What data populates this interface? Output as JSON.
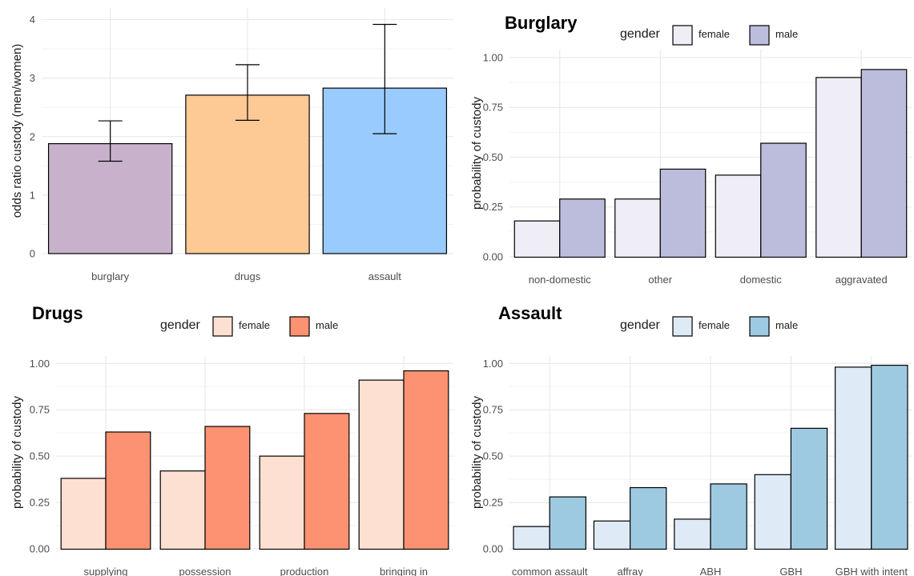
{
  "chart_data": [
    {
      "type": "bar",
      "title": "",
      "xlabel": "",
      "ylabel": "odds ratio custody (men/women)",
      "ylim": [
        0,
        4.2
      ],
      "yticks": [
        "0",
        "1",
        "2",
        "3",
        "4"
      ],
      "categories": [
        "burglary",
        "drugs",
        "assault"
      ],
      "values": [
        1.88,
        2.71,
        2.83
      ],
      "error_low": [
        1.58,
        2.28,
        2.05
      ],
      "error_high": [
        2.27,
        3.23,
        3.92
      ],
      "colors": [
        "#c8b2cb",
        "#fdc994",
        "#99cbfe"
      ],
      "grid": true,
      "legend": "none"
    },
    {
      "type": "bar",
      "title": "Burglary",
      "xlabel": "",
      "ylabel": "probability of custody",
      "ylim": [
        0,
        1.04
      ],
      "yticks": [
        "0.00",
        "0.25",
        "0.50",
        "0.75",
        "1.00"
      ],
      "categories": [
        "non-domestic",
        "other",
        "domestic",
        "aggravated"
      ],
      "legend_title": "gender",
      "legend_position": "top",
      "series": [
        {
          "name": "female",
          "color": "#efedf5",
          "values": [
            0.18,
            0.29,
            0.41,
            0.9
          ]
        },
        {
          "name": "male",
          "color": "#bcbddc",
          "values": [
            0.29,
            0.44,
            0.57,
            0.94
          ]
        }
      ],
      "grid": true
    },
    {
      "type": "bar",
      "title": "Drugs",
      "xlabel": "",
      "ylabel": "probability of custody",
      "ylim": [
        0,
        1.04
      ],
      "yticks": [
        "0.00",
        "0.25",
        "0.50",
        "0.75",
        "1.00"
      ],
      "categories": [
        "supplying",
        "possession",
        "production",
        "bringing in"
      ],
      "legend_title": "gender",
      "legend_position": "top",
      "series": [
        {
          "name": "female",
          "color": "#fee0d2",
          "values": [
            0.38,
            0.42,
            0.5,
            0.91
          ]
        },
        {
          "name": "male",
          "color": "#fc9272",
          "values": [
            0.63,
            0.66,
            0.73,
            0.96
          ]
        }
      ],
      "grid": true
    },
    {
      "type": "bar",
      "title": "Assault",
      "xlabel": "",
      "ylabel": "probability of custody",
      "ylim": [
        0,
        1.04
      ],
      "yticks": [
        "0.00",
        "0.25",
        "0.50",
        "0.75",
        "1.00"
      ],
      "categories": [
        "common assault",
        "affray",
        "ABH",
        "GBH",
        "GBH with intent"
      ],
      "legend_title": "gender",
      "legend_position": "top",
      "series": [
        {
          "name": "female",
          "color": "#deebf7",
          "values": [
            0.12,
            0.15,
            0.16,
            0.4,
            0.98
          ]
        },
        {
          "name": "male",
          "color": "#9ecae1",
          "values": [
            0.28,
            0.33,
            0.35,
            0.65,
            0.99
          ]
        }
      ],
      "grid": true
    }
  ]
}
